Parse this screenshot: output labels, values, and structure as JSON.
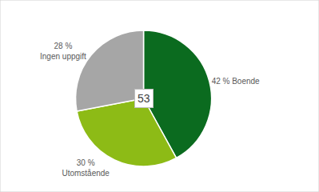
{
  "chart_data": {
    "type": "pie",
    "categories": [
      "Boende",
      "Utomstående",
      "Ingen uppgift"
    ],
    "values": [
      42,
      30,
      28
    ],
    "value_labels": [
      "42 % Boende",
      "30 %\nUtomstående",
      "28 %\nIngen uppgift"
    ],
    "colors": [
      "#0b6b1f",
      "#8dbb16",
      "#a6a6a6"
    ],
    "data_labels": true,
    "annotations": [
      "53"
    ]
  }
}
